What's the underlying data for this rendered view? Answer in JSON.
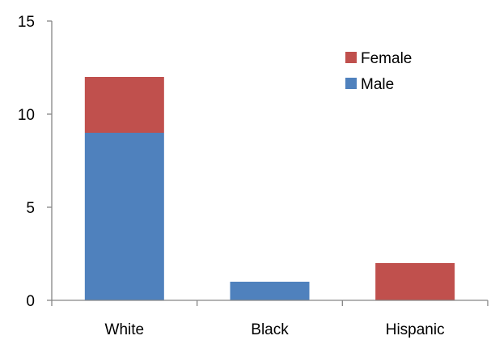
{
  "chart_data": {
    "type": "bar",
    "stacked": true,
    "title": "",
    "xlabel": "",
    "ylabel": "",
    "categories": [
      "White",
      "Black",
      "Hispanic"
    ],
    "series": [
      {
        "name": "Male",
        "values": [
          9,
          1,
          0
        ],
        "color": "#4f81bd"
      },
      {
        "name": "Female",
        "values": [
          3,
          0,
          2
        ],
        "color": "#c0504d"
      }
    ],
    "ylim": [
      0,
      15
    ],
    "yticks": [
      0,
      5,
      10,
      15
    ],
    "grid": false,
    "legend": {
      "placement": "top-right",
      "order": [
        "Female",
        "Male"
      ]
    }
  }
}
